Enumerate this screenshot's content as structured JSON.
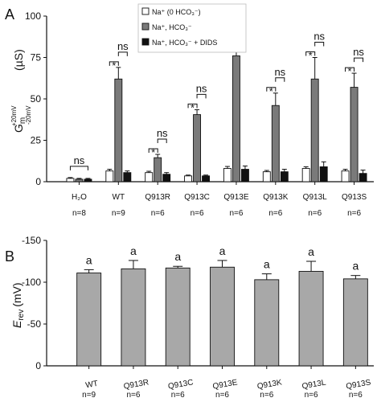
{
  "panel_labels": [
    "A",
    "B"
  ],
  "colors": {
    "white_bar": "#ffffff",
    "gray_bar_a": "#7a7a7a",
    "black_bar": "#111111",
    "gray_bar_b": "#a8a8a8",
    "axis": "#111111"
  },
  "chart_data": [
    {
      "panel": "A",
      "type": "bar",
      "ylabel": "G",
      "ylabel_subscript": "m",
      "ylabel_sup_top": "+20mV",
      "ylabel_sup_bottom": "-20mV",
      "ylabel_unit": "(µS)",
      "ylim": [
        0,
        100
      ],
      "yticks": [
        0,
        25,
        50,
        75,
        100
      ],
      "categories": [
        "H₂O",
        "WT",
        "Q913R",
        "Q913C",
        "Q913E",
        "Q913K",
        "Q913L",
        "Q913S"
      ],
      "n_labels": [
        "n=8",
        "n=9",
        "n=6",
        "n=6",
        "n=6",
        "n=6",
        "n=6",
        "n=6"
      ],
      "legend": [
        "Na⁺ (0 HCO₃⁻)",
        "Na⁺, HCO₃⁻",
        "Na⁺, HCO₃⁻ + DIDS"
      ],
      "legend_position": "top-center",
      "series": [
        {
          "name": "Na⁺ (0 HCO₃⁻)",
          "values": [
            2,
            6.5,
            5.5,
            3.5,
            8,
            6,
            8,
            6.5
          ],
          "errors": [
            0.5,
            1,
            0.8,
            0.5,
            1.2,
            0.8,
            1,
            1
          ]
        },
        {
          "name": "Na⁺, HCO₃⁻",
          "values": [
            1.5,
            62,
            14.5,
            40.5,
            76,
            46,
            62,
            57
          ],
          "errors": [
            0.5,
            7,
            2,
            3,
            16,
            7.5,
            13,
            8.5
          ]
        },
        {
          "name": "Na⁺, HCO₃⁻ + DIDS",
          "values": [
            1.5,
            5.5,
            4.5,
            3.5,
            7.5,
            6,
            9,
            5
          ],
          "errors": [
            0.5,
            1,
            1,
            0.5,
            2,
            1.5,
            3,
            2
          ]
        }
      ],
      "annotations": {
        "star_label": "*",
        "ns_label": "ns",
        "star_brackets": [
          null,
          [
            0,
            1
          ],
          [
            0,
            1
          ],
          [
            0,
            1
          ],
          [
            0,
            1
          ],
          [
            0,
            1
          ],
          [
            0,
            1
          ],
          [
            0,
            1
          ]
        ],
        "ns_brackets": [
          [
            0,
            2
          ],
          [
            1,
            2
          ],
          [
            1,
            2
          ],
          [
            1,
            2
          ],
          [
            1,
            2
          ],
          [
            1,
            2
          ],
          [
            1,
            2
          ],
          [
            1,
            2
          ]
        ]
      }
    },
    {
      "panel": "B",
      "type": "bar",
      "ylabel": "E",
      "ylabel_subscript": "rev",
      "ylabel_unit": "(mV)",
      "ylim": [
        0,
        -150
      ],
      "yticks": [
        0,
        -50,
        -100,
        -150
      ],
      "categories": [
        "WT",
        "Q913R",
        "Q913C",
        "Q913E",
        "Q913K",
        "Q913L",
        "Q913S"
      ],
      "n_labels": [
        "n=9",
        "n=6",
        "n=6",
        "n=6",
        "n=6",
        "n=6",
        "n=6"
      ],
      "series": [
        {
          "values": [
            -111,
            -116,
            -117,
            -118,
            -103,
            -113,
            -104
          ],
          "errors": [
            4,
            10,
            2,
            8,
            7,
            12,
            4
          ]
        }
      ],
      "bar_letter": "a"
    }
  ]
}
